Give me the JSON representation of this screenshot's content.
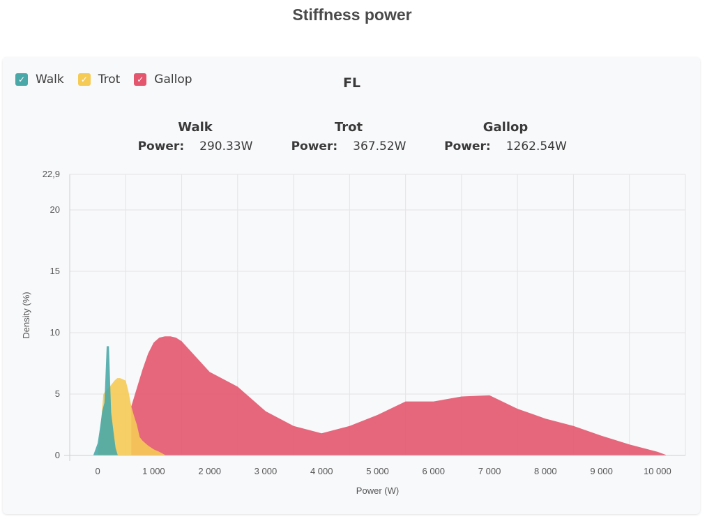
{
  "page_title": "Stiffness power",
  "panel_title": "FL",
  "legend": [
    {
      "label": "Walk",
      "color": "#4aa8a8",
      "checked": true
    },
    {
      "label": "Trot",
      "color": "#f5ca55",
      "checked": true
    },
    {
      "label": "Gallop",
      "color": "#e3566e",
      "checked": true
    }
  ],
  "stats": [
    {
      "name": "Walk",
      "label": "Power:",
      "value": "290.33W"
    },
    {
      "name": "Trot",
      "label": "Power:",
      "value": "367.52W"
    },
    {
      "name": "Gallop",
      "label": "Power:",
      "value": "1262.54W"
    }
  ],
  "chart_data": {
    "type": "area",
    "xlabel": "Power (W)",
    "ylabel": "Density (%)",
    "xlim": [
      -500,
      10500
    ],
    "ylim": [
      0,
      22.9
    ],
    "y_ticks": [
      0,
      5,
      10,
      15,
      20,
      22.9
    ],
    "y_tick_labels": [
      "0",
      "5",
      "10",
      "15",
      "20",
      "22,9"
    ],
    "x_ticks": [
      0,
      1000,
      2000,
      3000,
      4000,
      5000,
      6000,
      7000,
      8000,
      9000,
      10000
    ],
    "x_tick_labels": [
      "0",
      "1 000",
      "2 000",
      "3 000",
      "4 000",
      "5 000",
      "6 000",
      "7 000",
      "8 000",
      "9 000",
      "10 000"
    ],
    "grid": true,
    "series": [
      {
        "name": "Gallop",
        "color": "#e3566e",
        "x": [
          600,
          700,
          800,
          900,
          1000,
          1100,
          1200,
          1300,
          1400,
          1500,
          1700,
          2000,
          2500,
          3000,
          3500,
          4000,
          4500,
          5000,
          5500,
          6000,
          6500,
          7000,
          7500,
          8000,
          8500,
          9000,
          9500,
          10000,
          10150
        ],
        "values": [
          4.0,
          5.5,
          7.0,
          8.3,
          9.2,
          9.6,
          9.7,
          9.7,
          9.6,
          9.3,
          8.3,
          6.8,
          5.6,
          3.6,
          2.4,
          1.8,
          2.4,
          3.3,
          4.4,
          4.4,
          4.8,
          4.9,
          3.8,
          3.0,
          2.4,
          1.6,
          0.9,
          0.3,
          0.05
        ]
      },
      {
        "name": "Trot",
        "color": "#f5ca55",
        "x": [
          0,
          50,
          100,
          150,
          200,
          250,
          300,
          350,
          400,
          450,
          500,
          550,
          600,
          650,
          700,
          750,
          800,
          900,
          1000,
          1100,
          1200
        ],
        "values": [
          0.0,
          2.2,
          5.0,
          5.3,
          5.5,
          5.8,
          6.1,
          6.3,
          6.3,
          6.2,
          6.1,
          5.2,
          4.0,
          3.2,
          2.5,
          1.5,
          1.2,
          0.8,
          0.5,
          0.3,
          0.05
        ]
      },
      {
        "name": "Walk",
        "color": "#4aa8a8",
        "x": [
          -80,
          -40,
          0,
          40,
          80,
          120,
          160,
          200,
          240,
          280,
          320,
          360
        ],
        "values": [
          0.0,
          0.5,
          1.0,
          2.2,
          3.6,
          4.3,
          8.9,
          8.9,
          3.5,
          2.0,
          0.6,
          0.0
        ]
      }
    ]
  }
}
